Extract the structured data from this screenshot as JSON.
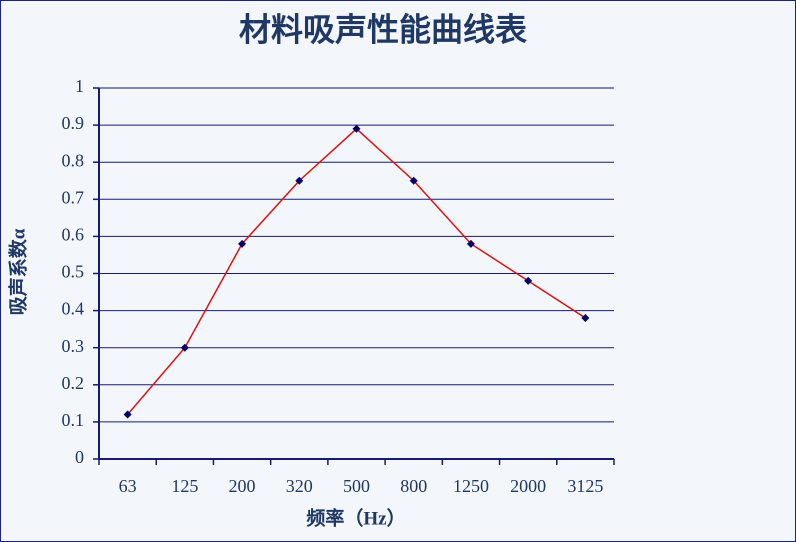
{
  "chart_data": {
    "type": "line",
    "title": "材料吸声性能曲线表",
    "x_label": "频率（Hz）",
    "y_label": "吸声系数α",
    "categories": [
      "63",
      "125",
      "200",
      "320",
      "500",
      "800",
      "1250",
      "2000",
      "3125"
    ],
    "series": [
      {
        "name": "吸声系数α",
        "color": "#dd1111",
        "marker_color": "#000066",
        "values": [
          0.12,
          0.3,
          0.58,
          0.75,
          0.89,
          0.75,
          0.58,
          0.48,
          0.38
        ]
      }
    ],
    "ylim": [
      0,
      1
    ],
    "yticks": [
      0,
      0.1,
      0.2,
      0.3,
      0.4,
      0.5,
      0.6,
      0.7,
      0.8,
      0.9,
      1
    ],
    "grid": true
  }
}
